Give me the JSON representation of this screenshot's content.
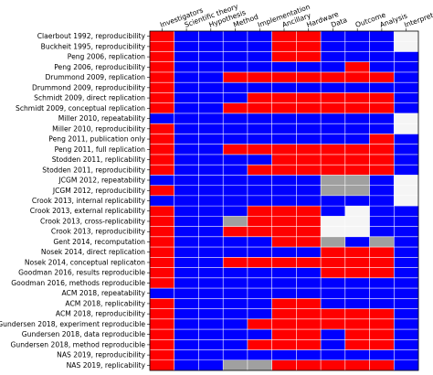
{
  "chart_data": {
    "type": "heatmap",
    "title": "",
    "columns": [
      "Investigators",
      "Scientific theory",
      "Hypothesis",
      "Method",
      "Implementation",
      "Ancillary",
      "Hardware",
      "Data",
      "Outcome",
      "Analysis",
      "Interpretation"
    ],
    "rows": [
      "Claerbout 1992, reproducibility",
      "Buckheit 1995, reproducibility",
      "Peng 2006,  replication",
      "Peng 2006,  reproducibility",
      "Drummond 2009, replication",
      "Drummond 2009, reproducibility",
      "Schmidt 2009, direct replication",
      "Schmidt 2009, conceptual replication",
      "Miller 2010, repeatability",
      "Miller 2010, reproducibility",
      "Peng 2011, publication only",
      "Peng 2011, full replication",
      "Stodden 2011, replicability",
      "Stodden 2011, reproducibility",
      "JCGM 2012, repeatability",
      "JCGM 2012, reproducibility",
      "Crook 2013, internal replicability",
      "Crook 2013, external replicability",
      "Crook 2013, cross-replicability",
      "Crook 2013, reproducibility",
      "Gent 2014, recomputation",
      "Nosek 2014, direct replication",
      "Nosek 2014, conceptual replicaton",
      "Goodman 2016, results reproducible",
      "Goodman 2016, methods reproducible",
      "ACM 2018, repeatability",
      "ACM 2018, replicability",
      "ACM 2018, reproducibility",
      "Gundersen 2018, experiment reproducible",
      "Gundersen 2018, data reproducible",
      "Gundersen 2018, method reproducible",
      "NAS 2019, reproducibility",
      "NAS 2019, replicability"
    ],
    "legend": [
      {
        "value": "R",
        "color": "#ff0000"
      },
      {
        "value": "B",
        "color": "#0000ff"
      },
      {
        "value": "G",
        "color": "#a0a0a0"
      },
      {
        "value": "W",
        "color": "#f5f5f5"
      }
    ],
    "cells": [
      "RBBBBRRBBBW",
      "RBBBBRRBBBW",
      "RBBBBRRBBBB",
      "RBBBBBBBRBB",
      "RBBRRRRRRRB",
      "RBBBBBBBBBB",
      "RBBBRRRRRRB",
      "RBBRRRRRRRB",
      "BBBBBBBBBBW",
      "RBBBBBBBBBW",
      "RBBBBBBBBRB",
      "RBBRRRRRRRB",
      "RBBBBRRRRRB",
      "RBBBRRRRRRB",
      "BBBBBBBGGBW",
      "RBBBBBBGGBW",
      "BBBBBBBBBBW",
      "RBBBRRRBWBB",
      "RBBGRRRWWBB",
      "RBBRRRRWWBB",
      "RBBBBRRGBGB",
      "RBBBBBBRRRB",
      "RBBRRRRRRRB",
      "RBBBBBBRRRB",
      "RBBBBBBBBBB",
      "BBBBBBBBBBB",
      "RBBBBRRBBBB",
      "RBBBBRRRRRB",
      "RBBBRRRRRRB",
      "RBBBBRRBRRB",
      "RBBBRRRBRRB",
      "RBBBBBBBBBB",
      "RBBGGRRRRRB"
    ]
  }
}
